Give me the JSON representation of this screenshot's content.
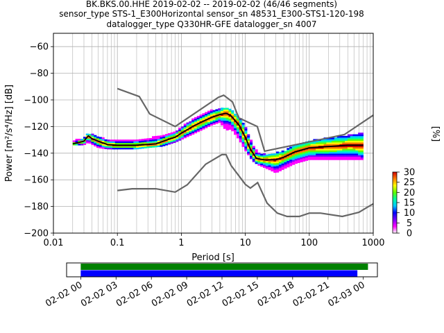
{
  "title_lines": [
    "BK.BKS.00.HHE   2019-02-02 -- 2019-02-02  (46/46 segments)",
    "sensor_type STS-1_E300Horizontal sensor_sn 48531_E300-STS1-120-198",
    "datalogger_type Q330HR-GFE datalogger_sn 4007"
  ],
  "chart_data": [
    {
      "type": "heatmap",
      "title": "BK.BKS.00.HHE   2019-02-02 -- 2019-02-02  (46/46 segments)",
      "xlabel": "Period [s]",
      "ylabel": "Power [m²/s⁴/Hz] [dB]",
      "x_scale": "log",
      "xlim": [
        0.01,
        1000
      ],
      "ylim": [
        -200,
        -50
      ],
      "x_ticks": [
        {
          "value": 0.01,
          "label": "0.01"
        },
        {
          "value": 0.1,
          "label": "0.1"
        },
        {
          "value": 1,
          "label": "1"
        },
        {
          "value": 10,
          "label": "10"
        },
        {
          "value": 100,
          "label": "100"
        },
        {
          "value": 1000,
          "label": "1000"
        }
      ],
      "y_ticks": [
        {
          "value": -60,
          "label": "−60"
        },
        {
          "value": -80,
          "label": "−80"
        },
        {
          "value": -100,
          "label": "−100"
        },
        {
          "value": -120,
          "label": "−120"
        },
        {
          "value": -140,
          "label": "−140"
        },
        {
          "value": -160,
          "label": "−160"
        },
        {
          "value": -180,
          "label": "−180"
        },
        {
          "value": -200,
          "label": "−200"
        }
      ],
      "grid": true,
      "colorbar": {
        "label": "[%]",
        "range": [
          0,
          30
        ],
        "ticks": [
          {
            "value": 0,
            "label": "0"
          },
          {
            "value": 5,
            "label": "5"
          },
          {
            "value": 10,
            "label": "10"
          },
          {
            "value": 15,
            "label": "15"
          },
          {
            "value": 20,
            "label": "20"
          },
          {
            "value": 25,
            "label": "25"
          },
          {
            "value": 30,
            "label": "30"
          }
        ],
        "colors": [
          "#ffffff",
          "#ff00ff",
          "#7a00ff",
          "#0000ff",
          "#00c8ff",
          "#00ffa0",
          "#60ff00",
          "#ffff00",
          "#ff8000",
          "#d00000"
        ]
      },
      "noise_model_high": [
        [
          0.1,
          -91.5
        ],
        [
          0.22,
          -97.5
        ],
        [
          0.32,
          -110.5
        ],
        [
          0.8,
          -120
        ],
        [
          3.8,
          -98
        ],
        [
          4.6,
          -96.5
        ],
        [
          6.3,
          -101.5
        ],
        [
          7.9,
          -113.5
        ],
        [
          15.4,
          -120
        ],
        [
          20,
          -138.5
        ],
        [
          354.8,
          -126
        ],
        [
          1000,
          -111.5
        ]
      ],
      "noise_model_low": [
        [
          0.1,
          -168
        ],
        [
          0.17,
          -166.7
        ],
        [
          0.4,
          -166.7
        ],
        [
          0.8,
          -169.2
        ],
        [
          1.24,
          -163.7
        ],
        [
          2.4,
          -148.3
        ],
        [
          4.3,
          -141.1
        ],
        [
          5,
          -141.1
        ],
        [
          6,
          -149.2
        ],
        [
          10,
          -163.4
        ],
        [
          12,
          -166.2
        ],
        [
          15.6,
          -162.1
        ],
        [
          21.9,
          -177.5
        ],
        [
          31.6,
          -185
        ],
        [
          45,
          -187.5
        ],
        [
          70,
          -187.5
        ],
        [
          100,
          -185
        ],
        [
          150,
          -185
        ],
        [
          328,
          -187.5
        ],
        [
          600,
          -184.4
        ],
        [
          800,
          -180.7
        ],
        [
          1000,
          -178
        ]
      ],
      "mode_curve": [
        [
          0.02,
          -133
        ],
        [
          0.025,
          -132
        ],
        [
          0.03,
          -131
        ],
        [
          0.035,
          -127
        ],
        [
          0.04,
          -129
        ],
        [
          0.05,
          -131
        ],
        [
          0.07,
          -133.5
        ],
        [
          0.1,
          -134
        ],
        [
          0.15,
          -134
        ],
        [
          0.2,
          -134
        ],
        [
          0.3,
          -133.5
        ],
        [
          0.4,
          -133
        ],
        [
          0.6,
          -130
        ],
        [
          0.8,
          -128
        ],
        [
          1,
          -125
        ],
        [
          1.5,
          -120
        ],
        [
          2,
          -117
        ],
        [
          3,
          -113
        ],
        [
          4,
          -111
        ],
        [
          5,
          -110
        ],
        [
          6,
          -112
        ],
        [
          8,
          -119
        ],
        [
          10,
          -128
        ],
        [
          12,
          -137
        ],
        [
          15,
          -144
        ],
        [
          20,
          -145
        ],
        [
          25,
          -145
        ],
        [
          30,
          -145
        ],
        [
          40,
          -143
        ],
        [
          60,
          -139
        ],
        [
          100,
          -136
        ],
        [
          200,
          -135
        ],
        [
          400,
          -134
        ],
        [
          700,
          -134
        ]
      ],
      "density_band": [
        {
          "period": 0.02,
          "low": -134,
          "high": -131
        },
        {
          "period": 0.03,
          "low": -134,
          "high": -129
        },
        {
          "period": 0.035,
          "low": -132,
          "high": -125
        },
        {
          "period": 0.05,
          "low": -136,
          "high": -128
        },
        {
          "period": 0.07,
          "low": -137,
          "high": -130
        },
        {
          "period": 0.1,
          "low": -137,
          "high": -131
        },
        {
          "period": 0.2,
          "low": -137,
          "high": -130
        },
        {
          "period": 0.3,
          "low": -136,
          "high": -129
        },
        {
          "period": 0.5,
          "low": -135,
          "high": -127
        },
        {
          "period": 0.8,
          "low": -132,
          "high": -124
        },
        {
          "period": 1.5,
          "low": -126,
          "high": -115
        },
        {
          "period": 3,
          "low": -119,
          "high": -108
        },
        {
          "period": 4,
          "low": -117,
          "high": -107
        },
        {
          "period": 5,
          "low": -123,
          "high": -106
        },
        {
          "period": 6,
          "low": -122,
          "high": -108
        },
        {
          "period": 8,
          "low": -130,
          "high": -113
        },
        {
          "period": 10,
          "low": -138,
          "high": -120
        },
        {
          "period": 13,
          "low": -146,
          "high": -134
        },
        {
          "period": 16,
          "low": -149,
          "high": -140
        },
        {
          "period": 20,
          "low": -151,
          "high": -141
        },
        {
          "period": 25,
          "low": -153,
          "high": -141
        },
        {
          "period": 30,
          "low": -155,
          "high": -140
        },
        {
          "period": 40,
          "low": -152,
          "high": -139
        },
        {
          "period": 60,
          "low": -148,
          "high": -134
        },
        {
          "period": 100,
          "low": -145,
          "high": -131
        },
        {
          "period": 200,
          "low": -145,
          "high": -129
        },
        {
          "period": 400,
          "low": -145,
          "high": -127
        },
        {
          "period": 700,
          "low": -145,
          "high": -125
        }
      ]
    },
    {
      "type": "timeline",
      "tick_labels": [
        "02-02 00",
        "02-02 03",
        "02-02 06",
        "02-02 09",
        "02-02 12",
        "02-02 15",
        "02-02 18",
        "02-02 21",
        "02-03 00"
      ],
      "tick_hours": [
        0,
        3,
        6,
        9,
        12,
        15,
        18,
        21,
        24
      ],
      "xlim_hours": [
        -1.2,
        25.2
      ],
      "bars": [
        {
          "start_hour": 0,
          "end_hour": 24.4,
          "color": "#008000"
        },
        {
          "start_hour": 0,
          "end_hour": 23.5,
          "color": "#0000ff"
        }
      ]
    }
  ]
}
